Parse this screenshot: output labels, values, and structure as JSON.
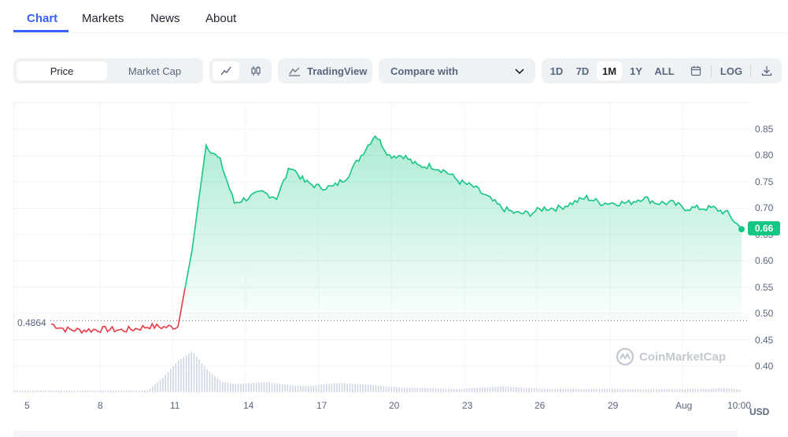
{
  "tabs": [
    {
      "label": "Chart",
      "active": true
    },
    {
      "label": "Markets",
      "active": false
    },
    {
      "label": "News",
      "active": false
    },
    {
      "label": "About",
      "active": false
    }
  ],
  "toolbar": {
    "price_label": "Price",
    "market_cap_label": "Market Cap",
    "line_icon": "line-chart-icon",
    "candle_icon": "candlestick-icon",
    "tradingview_label": "TradingView",
    "compare_label": "Compare with",
    "ranges": [
      "1D",
      "7D",
      "1M",
      "1Y",
      "ALL"
    ],
    "active_range": "1M",
    "calendar_icon": "calendar-icon",
    "log_label": "LOG",
    "download_icon": "download-icon"
  },
  "chart": {
    "start_price_label": "0.4864",
    "last_price_label": "0.66",
    "currency_label": "USD",
    "watermark": "CoinMarketCap",
    "y_ticks": [
      "0.85",
      "0.80",
      "0.75",
      "0.70",
      "0.65",
      "0.60",
      "0.55",
      "0.50",
      "0.45",
      "0.40"
    ],
    "x_ticks": [
      "5",
      "8",
      "11",
      "14",
      "17",
      "20",
      "23",
      "26",
      "29",
      "Aug",
      "10:00"
    ]
  },
  "colors": {
    "accent": "#3861fb",
    "up": "#16c784",
    "down": "#ea3943"
  },
  "chart_data": {
    "type": "line",
    "title": "",
    "xlabel": "",
    "ylabel": "USD",
    "ylim": [
      0.35,
      0.88
    ],
    "x": [
      "5",
      "6",
      "7",
      "8",
      "9",
      "10",
      "11",
      "12",
      "13",
      "13.9",
      "14",
      "14.3",
      "14.6",
      "15",
      "15.5",
      "16",
      "16.5",
      "17",
      "17.5",
      "18",
      "18.5",
      "19",
      "19.5",
      "20",
      "20.3",
      "20.6",
      "21",
      "21.5",
      "22",
      "22.5",
      "23",
      "23.5",
      "24",
      "24.5",
      "25",
      "25.5",
      "26",
      "26.5",
      "27",
      "27.5",
      "28",
      "28.5",
      "29",
      "29.5",
      "30",
      "30.5",
      "31",
      "31.5",
      "Aug",
      "10:00"
    ],
    "series": [
      {
        "values": [
          0.48,
          0.47,
          0.468,
          0.469,
          0.47,
          0.468,
          0.471,
          0.476,
          0.474,
          0.475,
          0.62,
          0.82,
          0.79,
          0.71,
          0.72,
          0.73,
          0.72,
          0.78,
          0.75,
          0.74,
          0.74,
          0.76,
          0.8,
          0.84,
          0.8,
          0.8,
          0.78,
          0.78,
          0.77,
          0.75,
          0.74,
          0.72,
          0.7,
          0.69,
          0.69,
          0.7,
          0.7,
          0.71,
          0.72,
          0.71,
          0.71,
          0.71,
          0.72,
          0.71,
          0.71,
          0.7,
          0.7,
          0.7,
          0.69,
          0.66
        ]
      }
    ],
    "volume": {
      "values": [
        0.02,
        0.02,
        0.02,
        0.02,
        0.02,
        0.02,
        0.02,
        0.02,
        0.02,
        0.04,
        0.35,
        0.75,
        1.0,
        0.55,
        0.25,
        0.2,
        0.22,
        0.25,
        0.2,
        0.15,
        0.15,
        0.2,
        0.22,
        0.2,
        0.18,
        0.14,
        0.12,
        0.1,
        0.1,
        0.08,
        0.08,
        0.1,
        0.12,
        0.14,
        0.12,
        0.1,
        0.08,
        0.08,
        0.08,
        0.08,
        0.08,
        0.07,
        0.07,
        0.07,
        0.08,
        0.07,
        0.08,
        0.08,
        0.1,
        0.06
      ]
    },
    "grid": true
  }
}
